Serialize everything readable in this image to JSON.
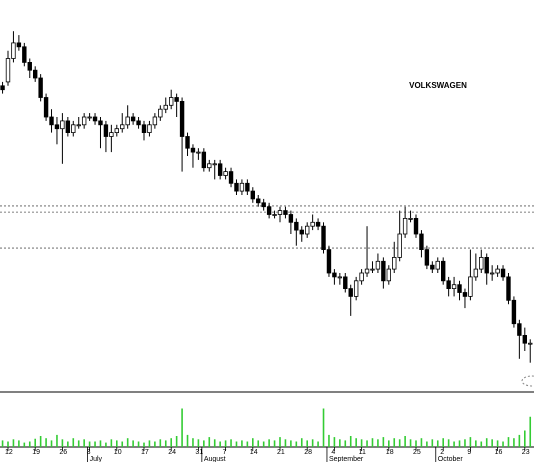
{
  "chart_data": {
    "type": "candlestick",
    "title": "VOLKSWAGEN",
    "categories": [
      null,
      "12",
      null,
      null,
      null,
      null,
      "19",
      null,
      null,
      null,
      null,
      "26",
      null,
      null,
      null,
      null,
      "3",
      null,
      null,
      null,
      null,
      "10",
      null,
      null,
      null,
      null,
      "17",
      null,
      null,
      null,
      null,
      "24",
      null,
      null,
      null,
      null,
      "31",
      null,
      null,
      null,
      null,
      "7",
      null,
      null,
      null,
      null,
      "14",
      null,
      null,
      null,
      null,
      "21",
      null,
      null,
      null,
      null,
      "28",
      null,
      null,
      null,
      null,
      "4",
      null,
      null,
      null,
      null,
      "11",
      null,
      null,
      null,
      null,
      "18",
      null,
      null,
      null,
      null,
      "25",
      null,
      null,
      null,
      null,
      "2",
      null,
      null,
      null,
      null,
      "9",
      null,
      null,
      null,
      null,
      "16",
      null,
      null,
      null,
      null,
      "23",
      null
    ],
    "months": [
      null,
      null,
      null,
      null,
      null,
      null,
      null,
      null,
      null,
      null,
      null,
      null,
      null,
      null,
      null,
      null,
      "July",
      null,
      null,
      null,
      null,
      null,
      null,
      null,
      null,
      null,
      null,
      null,
      null,
      null,
      null,
      null,
      null,
      null,
      null,
      null,
      null,
      "August",
      null,
      null,
      null,
      null,
      null,
      null,
      null,
      null,
      null,
      null,
      null,
      null,
      null,
      null,
      null,
      null,
      null,
      null,
      null,
      null,
      null,
      null,
      "September",
      null,
      null,
      null,
      null,
      null,
      null,
      null,
      null,
      null,
      null,
      null,
      null,
      null,
      null,
      null,
      null,
      null,
      null,
      null,
      "October",
      null,
      null,
      null,
      null,
      null,
      null,
      null,
      null,
      null,
      null,
      null,
      null,
      null,
      null,
      null,
      null,
      null
    ],
    "open": [
      78,
      79,
      85,
      89,
      88,
      84,
      82,
      80,
      75,
      70,
      68,
      67,
      69,
      66,
      68,
      68,
      70,
      70,
      69,
      68,
      65,
      66,
      67,
      68,
      70,
      69,
      68,
      66,
      68,
      70,
      72,
      73,
      75,
      74,
      65,
      62,
      61,
      61,
      57,
      58,
      58,
      55,
      56,
      53,
      51,
      53,
      51,
      49,
      48,
      47,
      45,
      45,
      46,
      45,
      43,
      41,
      40,
      42,
      43,
      42,
      36,
      30,
      29,
      29,
      26,
      24,
      28,
      30,
      31,
      31,
      33,
      28,
      31,
      34,
      40,
      44,
      44,
      40,
      36,
      32,
      31,
      33,
      28,
      26,
      27,
      25,
      24,
      29,
      31,
      34,
      30,
      30,
      31,
      29,
      23,
      17,
      14,
      12
    ],
    "high": [
      79,
      87,
      92,
      91,
      89,
      85,
      83,
      81,
      76,
      72,
      70,
      71,
      70,
      69,
      70,
      71,
      71,
      71,
      70,
      69,
      68,
      68,
      71,
      73,
      71,
      70,
      69,
      69,
      71,
      73,
      75,
      77,
      76,
      75,
      66,
      63,
      62,
      62,
      59,
      59,
      59,
      57,
      57,
      54,
      54,
      54,
      52,
      50,
      49,
      48,
      46,
      47,
      47,
      46,
      44,
      42,
      43,
      45,
      44,
      43,
      37,
      31,
      30,
      30,
      27,
      29,
      31,
      42,
      33,
      35,
      34,
      32,
      38,
      46,
      47,
      46,
      45,
      41,
      37,
      33,
      34,
      34,
      29,
      29,
      28,
      26,
      36,
      35,
      36,
      35,
      32,
      32,
      32,
      30,
      24,
      18,
      16,
      13
    ],
    "low": [
      76,
      78,
      84,
      87,
      83,
      80,
      79,
      74,
      69,
      66,
      63,
      58,
      65,
      65,
      67,
      67,
      69,
      68,
      62,
      61,
      61,
      65,
      66,
      67,
      68,
      67,
      64,
      65,
      67,
      69,
      71,
      72,
      70,
      56,
      60,
      57,
      59,
      56,
      56,
      54,
      54,
      54,
      52,
      50,
      50,
      50,
      48,
      47,
      46,
      44,
      44,
      43,
      44,
      40,
      37,
      38,
      39,
      41,
      41,
      35,
      29,
      27,
      27,
      25,
      19,
      23,
      27,
      29,
      30,
      30,
      26,
      27,
      30,
      33,
      39,
      43,
      39,
      34,
      31,
      30,
      30,
      27,
      24,
      24,
      23,
      21,
      23,
      28,
      30,
      27,
      28,
      29,
      28,
      22,
      16,
      8,
      10,
      7
    ],
    "close": [
      77,
      85,
      89,
      88,
      84,
      82,
      80,
      75,
      70,
      68,
      67,
      69,
      66,
      68,
      68,
      70,
      70,
      69,
      68,
      65,
      66,
      67,
      68,
      70,
      69,
      68,
      66,
      68,
      70,
      72,
      73,
      75,
      74,
      65,
      62,
      61,
      61,
      57,
      58,
      58,
      55,
      56,
      53,
      51,
      53,
      51,
      49,
      48,
      47,
      45,
      45,
      46,
      45,
      43,
      41,
      40,
      42,
      43,
      42,
      36,
      30,
      29,
      29,
      26,
      24,
      28,
      30,
      31,
      31,
      33,
      28,
      31,
      34,
      40,
      44,
      44,
      40,
      36,
      32,
      31,
      33,
      28,
      26,
      27,
      25,
      24,
      29,
      31,
      34,
      30,
      30,
      31,
      29,
      23,
      17,
      14,
      12,
      12
    ],
    "volume": [
      12,
      10,
      14,
      12,
      8,
      10,
      15,
      20,
      16,
      12,
      22,
      14,
      10,
      16,
      12,
      14,
      10,
      10,
      12,
      8,
      14,
      12,
      10,
      16,
      12,
      10,
      8,
      12,
      10,
      14,
      12,
      16,
      20,
      70,
      22,
      16,
      14,
      12,
      18,
      14,
      10,
      12,
      14,
      10,
      12,
      10,
      16,
      12,
      10,
      14,
      12,
      18,
      14,
      12,
      10,
      16,
      12,
      14,
      10,
      70,
      22,
      18,
      14,
      12,
      20,
      16,
      14,
      12,
      16,
      14,
      18,
      12,
      16,
      14,
      20,
      14,
      12,
      16,
      10,
      14,
      12,
      16,
      14,
      10,
      12,
      14,
      18,
      12,
      10,
      16,
      14,
      12,
      10,
      18,
      16,
      22,
      30,
      55
    ],
    "ylim": [
      0,
      100
    ],
    "volume_lim": [
      0,
      100
    ],
    "levels": [
      47.2,
      45.6,
      36.4
    ],
    "up_color": "#ffffff",
    "down_color": "#000000",
    "volume_color": "#33cc33"
  }
}
